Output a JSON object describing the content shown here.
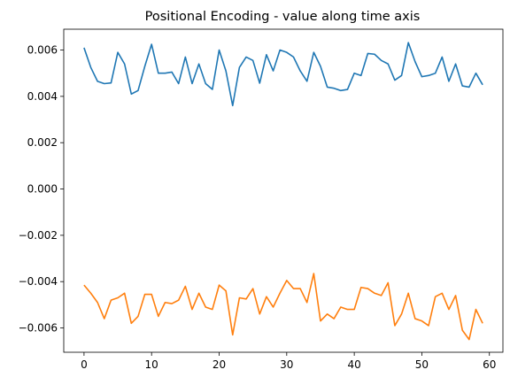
{
  "chart_data": {
    "type": "line",
    "title": "Positional Encoding - value along time axis",
    "xlabel": "",
    "ylabel": "",
    "xlim": [
      -3,
      62
    ],
    "ylim": [
      -0.00705,
      0.0069
    ],
    "x_ticks": [
      0,
      10,
      20,
      30,
      40,
      50,
      60
    ],
    "y_ticks": [
      -0.006,
      -0.004,
      -0.002,
      0.0,
      0.002,
      0.004,
      0.006
    ],
    "y_tick_labels": [
      "−0.006",
      "−0.004",
      "−0.002",
      "0.000",
      "0.002",
      "0.004",
      "0.006"
    ],
    "grid": false,
    "colors": [
      "#1f77b4",
      "#ff7f0e"
    ],
    "x": [
      0,
      1,
      2,
      3,
      4,
      5,
      6,
      7,
      8,
      9,
      10,
      11,
      12,
      13,
      14,
      15,
      16,
      17,
      18,
      19,
      20,
      21,
      22,
      23,
      24,
      25,
      26,
      27,
      28,
      29,
      30,
      31,
      32,
      33,
      34,
      35,
      36,
      37,
      38,
      39,
      40,
      41,
      42,
      43,
      44,
      45,
      46,
      47,
      48,
      49,
      50,
      51,
      52,
      53,
      54,
      55,
      56,
      57,
      58,
      59
    ],
    "series": [
      {
        "values": [
          0.0061,
          0.00525,
          0.00465,
          0.00455,
          0.00458,
          0.0059,
          0.0054,
          0.0041,
          0.00425,
          0.0053,
          0.00625,
          0.005,
          0.005,
          0.00505,
          0.00455,
          0.0057,
          0.00455,
          0.0054,
          0.00455,
          0.0043,
          0.006,
          0.0051,
          0.0036,
          0.00525,
          0.0057,
          0.00555,
          0.00457,
          0.0058,
          0.0051,
          0.006,
          0.0059,
          0.0057,
          0.0051,
          0.00465,
          0.0059,
          0.0053,
          0.0044,
          0.00435,
          0.00425,
          0.0043,
          0.005,
          0.0049,
          0.00585,
          0.00582,
          0.00555,
          0.0054,
          0.0047,
          0.0049,
          0.00632,
          0.0055,
          0.00485,
          0.0049,
          0.005,
          0.0057,
          0.00465,
          0.0054,
          0.00445,
          0.0044,
          0.005,
          0.0045
        ]
      },
      {
        "values": [
          -0.00415,
          -0.0045,
          -0.0049,
          -0.0056,
          -0.0048,
          -0.0047,
          -0.0045,
          -0.0058,
          -0.0055,
          -0.00455,
          -0.00455,
          -0.0055,
          -0.0049,
          -0.00495,
          -0.0048,
          -0.0042,
          -0.0052,
          -0.0045,
          -0.0051,
          -0.0052,
          -0.00415,
          -0.0044,
          -0.0063,
          -0.0047,
          -0.00475,
          -0.0043,
          -0.0054,
          -0.00465,
          -0.0051,
          -0.0045,
          -0.00395,
          -0.0043,
          -0.0043,
          -0.0049,
          -0.00365,
          -0.0057,
          -0.0054,
          -0.0056,
          -0.0051,
          -0.0052,
          -0.0052,
          -0.00425,
          -0.0043,
          -0.0045,
          -0.0046,
          -0.00405,
          -0.0059,
          -0.0054,
          -0.0045,
          -0.0056,
          -0.0057,
          -0.0059,
          -0.00465,
          -0.0045,
          -0.0052,
          -0.0046,
          -0.0061,
          -0.0065,
          -0.0052,
          -0.0058
        ]
      }
    ]
  }
}
